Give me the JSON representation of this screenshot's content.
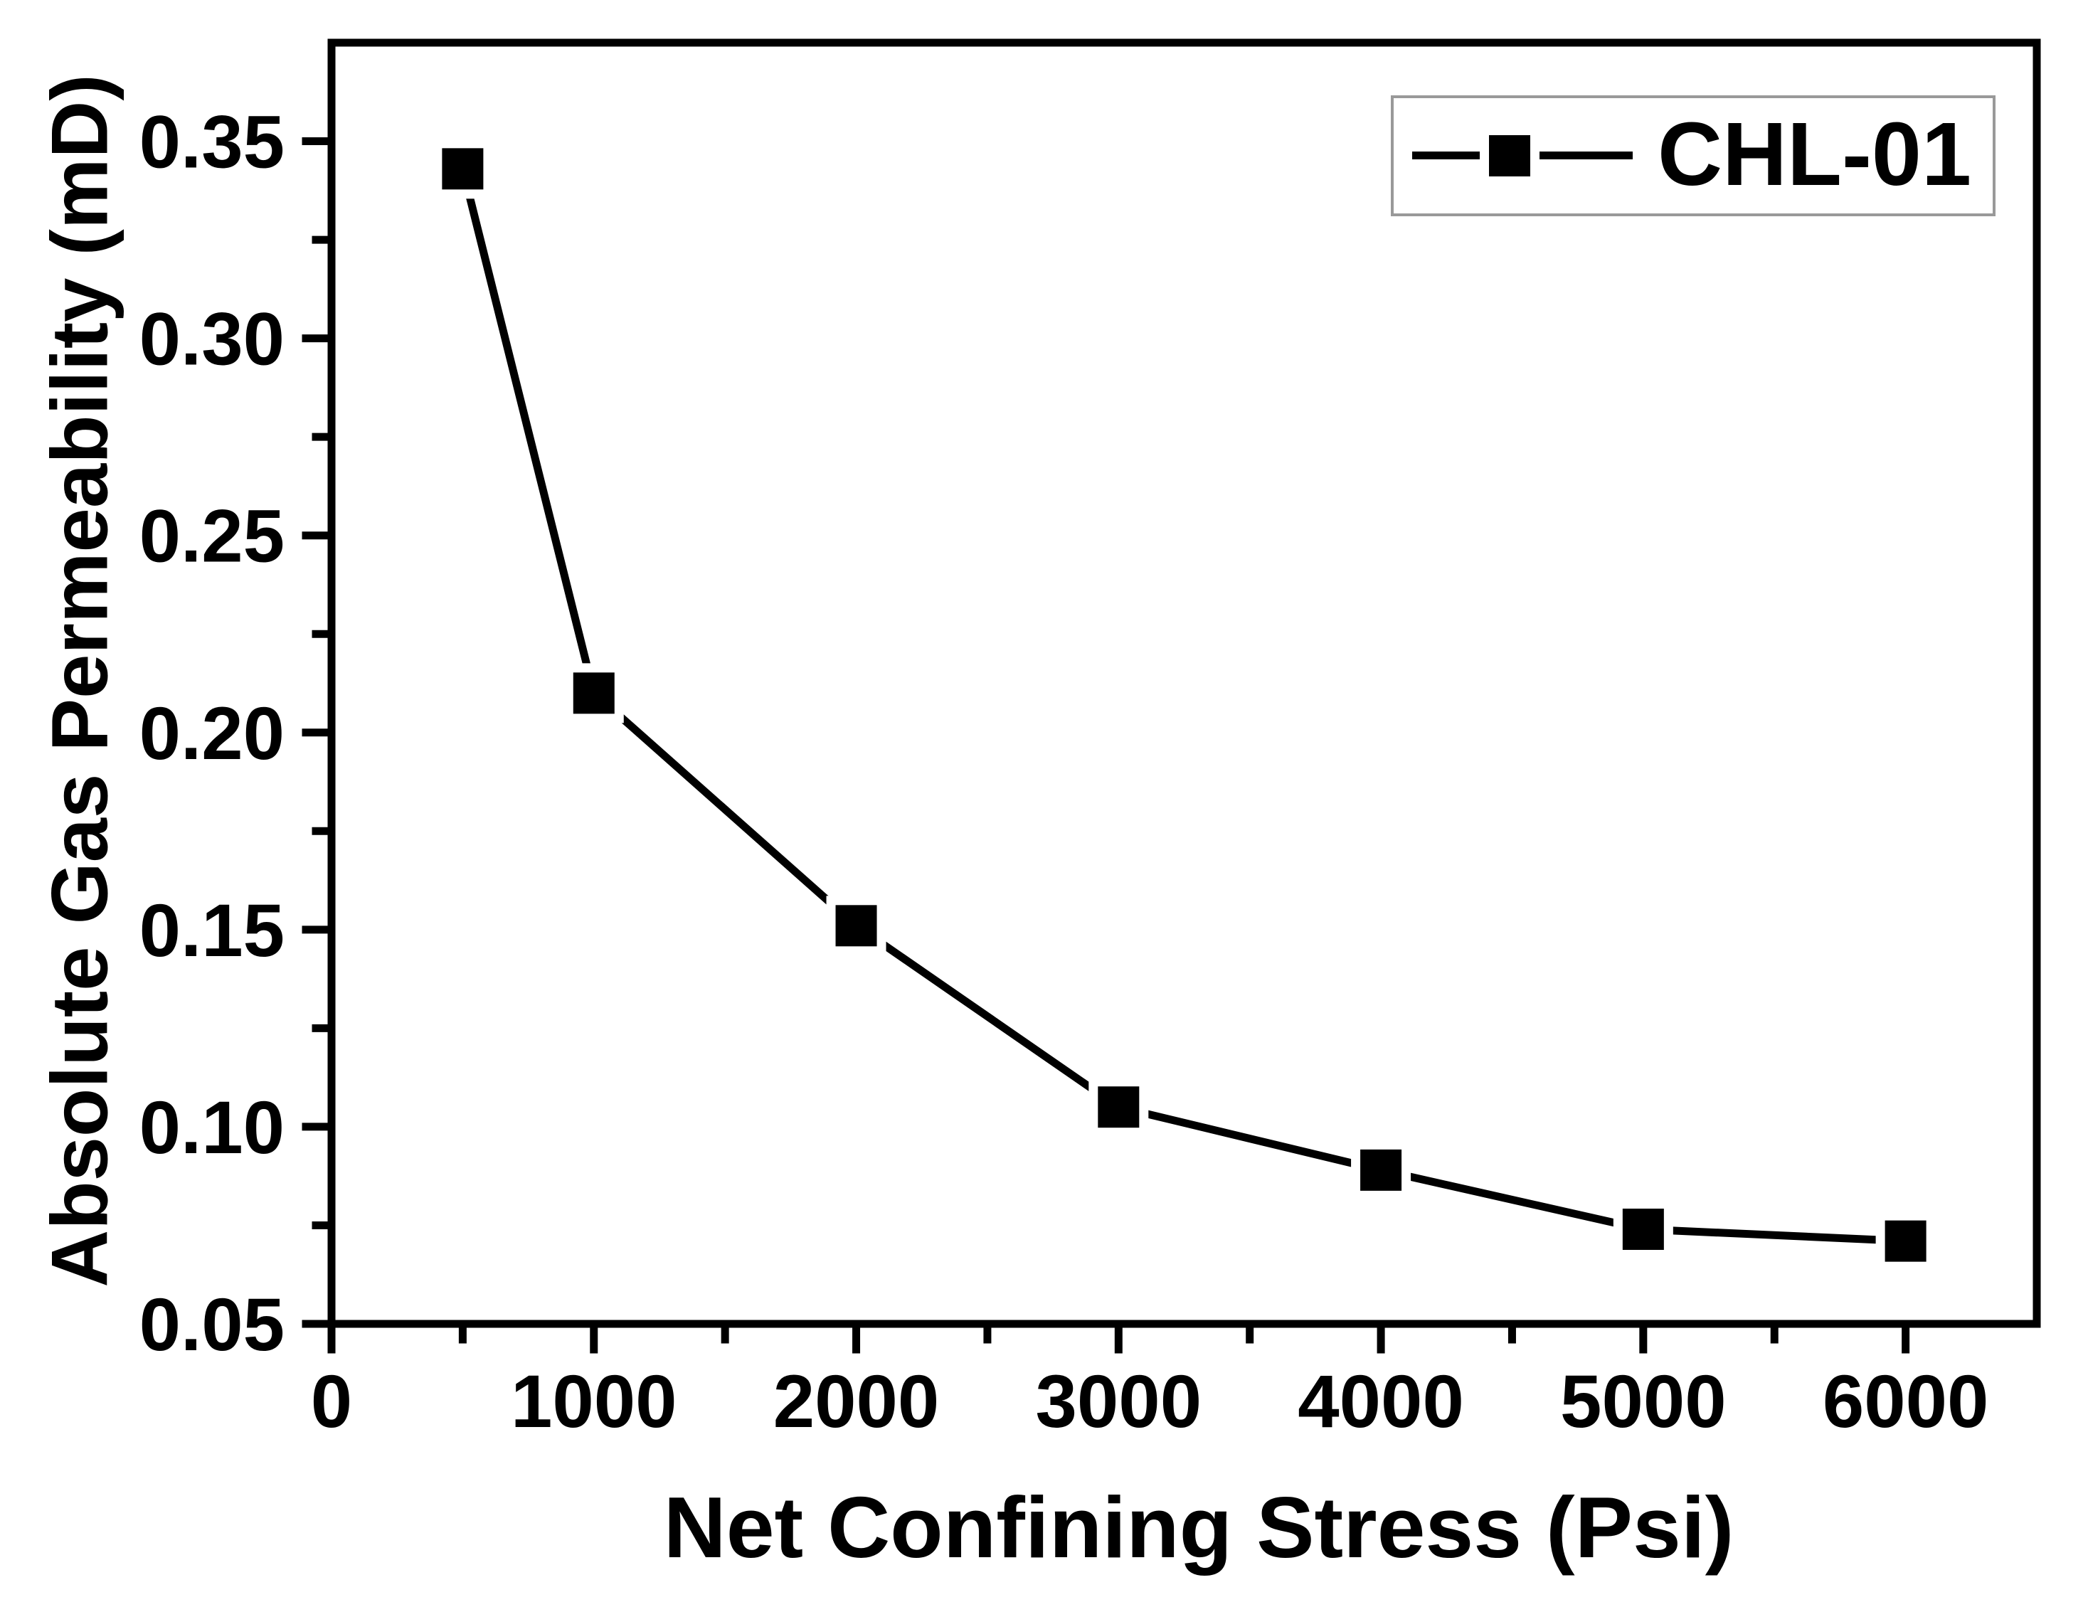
{
  "figure": {
    "background": "#ffffff",
    "frame_color": "#000000",
    "text_color": "#000000",
    "legend_border_color": "#999999"
  },
  "chart_data": {
    "type": "line",
    "title": "",
    "xlabel": "Net Confining Stress (Psi)",
    "ylabel": "Absolute Gas Permeability (mD)",
    "series": [
      {
        "name": "CHL-01",
        "marker": "filled-square",
        "color": "#000000",
        "x": [
          500,
          1000,
          2000,
          3000,
          4000,
          5000,
          6000
        ],
        "y": [
          0.343,
          0.21,
          0.151,
          0.105,
          0.089,
          0.074,
          0.071
        ]
      }
    ],
    "xlim": [
      0,
      6500
    ],
    "ylim": [
      0.05,
      0.375
    ],
    "xticks": [
      0,
      1000,
      2000,
      3000,
      4000,
      5000,
      6000
    ],
    "xtick_labels": [
      "0",
      "1000",
      "2000",
      "3000",
      "4000",
      "5000",
      "6000"
    ],
    "yticks": [
      0.05,
      0.1,
      0.15,
      0.2,
      0.25,
      0.3,
      0.35
    ],
    "ytick_labels": [
      "0.05",
      "0.10",
      "0.15",
      "0.20",
      "0.25",
      "0.30",
      "0.35"
    ],
    "x_minor_ticks": [
      500,
      1500,
      2500,
      3500,
      4500,
      5500
    ],
    "y_minor_ticks": [
      0.075,
      0.125,
      0.175,
      0.225,
      0.275,
      0.325
    ],
    "grid": false,
    "legend": {
      "position": "top-right",
      "entries": [
        "CHL-01"
      ]
    }
  }
}
